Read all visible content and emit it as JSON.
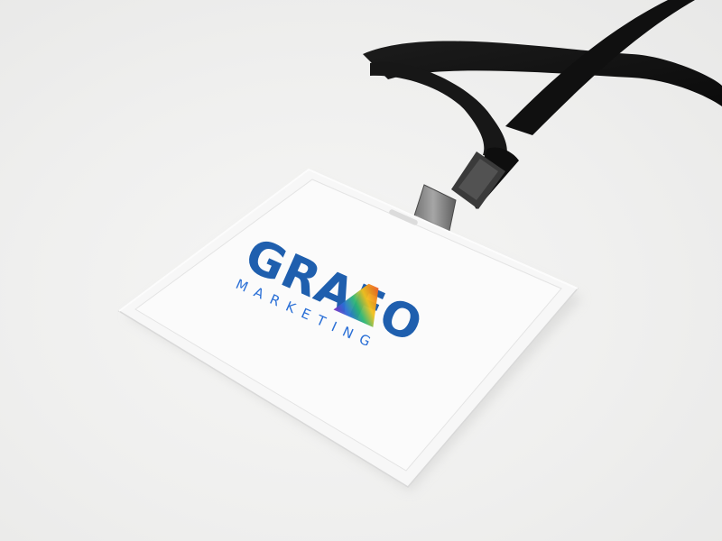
{
  "badge": {
    "logo_wordmark": "GRAFO",
    "logo_tagline": "MARKETING"
  },
  "colors": {
    "background": "#f0f0ef",
    "lanyard": "#141414",
    "brand_blue": "#1f5fae"
  }
}
